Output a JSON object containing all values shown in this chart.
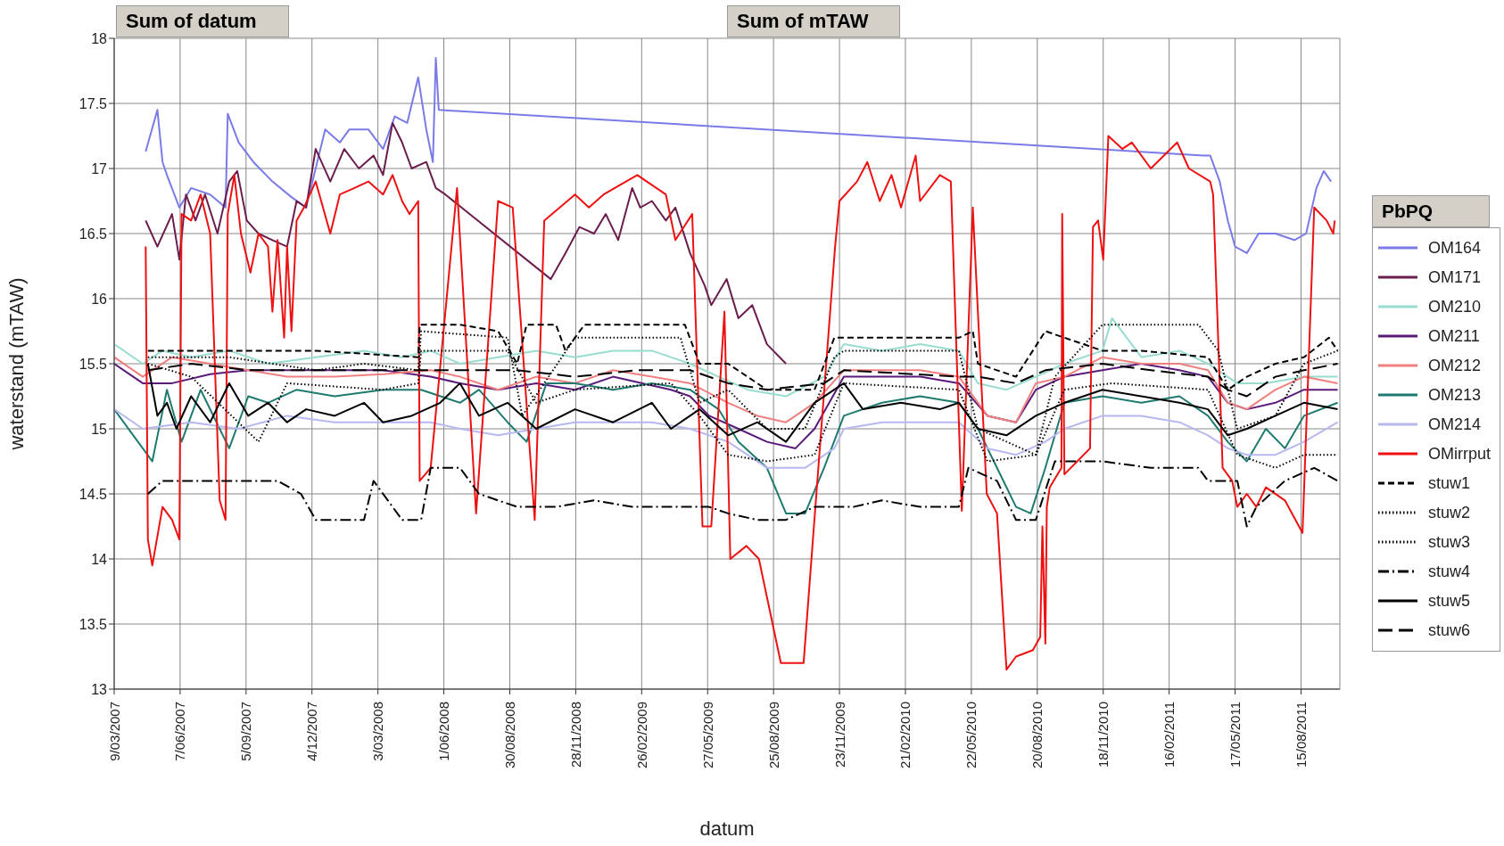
{
  "chart_data": {
    "type": "line",
    "xlabel": "datum",
    "ylabel": "waterstand (mTAW)",
    "legend_title": "PbPQ",
    "annotations": [
      "Sum of datum",
      "Sum of mTAW"
    ],
    "xlim": [
      "2007-03-09",
      "2011-10-07"
    ],
    "ylim": [
      13,
      18
    ],
    "xticks": [
      {
        "value": "2007-03-09",
        "label": "9/03/2007"
      },
      {
        "value": "2007-06-07",
        "label": "7/06/2007"
      },
      {
        "value": "2007-09-05",
        "label": "5/09/2007"
      },
      {
        "value": "2007-12-04",
        "label": "4/12/2007"
      },
      {
        "value": "2008-03-03",
        "label": "3/03/2008"
      },
      {
        "value": "2008-06-01",
        "label": "1/06/2008"
      },
      {
        "value": "2008-08-30",
        "label": "30/08/2008"
      },
      {
        "value": "2008-11-28",
        "label": "28/11/2008"
      },
      {
        "value": "2009-02-26",
        "label": "26/02/2009"
      },
      {
        "value": "2009-05-27",
        "label": "27/05/2009"
      },
      {
        "value": "2009-08-25",
        "label": "25/08/2009"
      },
      {
        "value": "2009-11-23",
        "label": "23/11/2009"
      },
      {
        "value": "2010-02-21",
        "label": "21/02/2010"
      },
      {
        "value": "2010-05-22",
        "label": "22/05/2010"
      },
      {
        "value": "2010-08-20",
        "label": "20/08/2010"
      },
      {
        "value": "2010-11-18",
        "label": "18/11/2010"
      },
      {
        "value": "2011-02-16",
        "label": "16/02/2011"
      },
      {
        "value": "2011-05-17",
        "label": "17/05/2011"
      },
      {
        "value": "2011-08-15",
        "label": "15/08/2011"
      }
    ],
    "yticks": [
      13,
      13.5,
      14,
      14.5,
      15,
      15.5,
      16,
      16.5,
      17,
      17.5,
      18
    ],
    "grid": true,
    "legend": "right",
    "marker": "none",
    "series": [
      {
        "name": "OM164",
        "color": "#7b7be8",
        "line_style": "solid",
        "x": [
          "2007-04-21",
          "2007-05-07",
          "2007-05-14",
          "2007-05-20",
          "2007-06-06",
          "2007-06-22",
          "2007-07-18",
          "2007-08-08",
          "2007-08-11",
          "2007-08-26",
          "2007-09-15",
          "2007-10-11",
          "2007-11-06",
          "2007-11-26",
          "2007-12-09",
          "2007-12-22",
          "2008-01-11",
          "2008-01-24",
          "2008-02-19",
          "2008-03-10",
          "2008-03-26",
          "2008-04-12",
          "2008-04-27",
          "2008-05-08",
          "2008-05-17",
          "2008-05-21",
          "2008-05-25",
          "2011-04-04",
          "2011-04-13",
          "2011-04-26",
          "2011-05-07",
          "2011-05-17",
          "2011-06-02",
          "2011-06-18",
          "2011-07-11",
          "2011-08-06",
          "2011-08-22",
          "2011-09-05",
          "2011-09-15",
          "2011-09-25"
        ],
        "values": [
          17.13,
          17.45,
          17.05,
          16.95,
          16.7,
          16.85,
          16.8,
          16.7,
          17.42,
          17.2,
          17.05,
          16.9,
          16.78,
          16.7,
          17.0,
          17.3,
          17.2,
          17.3,
          17.3,
          17.15,
          17.4,
          17.35,
          17.7,
          17.3,
          17.05,
          17.85,
          17.45,
          17.1,
          17.1,
          16.9,
          16.6,
          16.4,
          16.35,
          16.5,
          16.5,
          16.45,
          16.5,
          16.85,
          16.98,
          16.9
        ]
      },
      {
        "name": "OM171",
        "color": "#6b1e4e",
        "line_style": "solid",
        "x": [
          "2007-04-21",
          "2007-05-07",
          "2007-05-27",
          "2007-06-06",
          "2007-06-15",
          "2007-06-28",
          "2007-07-11",
          "2007-07-28",
          "2007-08-13",
          "2007-08-24",
          "2007-09-06",
          "2007-09-22",
          "2007-10-11",
          "2007-10-31",
          "2007-11-13",
          "2007-11-26",
          "2007-12-09",
          "2007-12-29",
          "2008-01-17",
          "2008-02-06",
          "2008-02-26",
          "2008-03-10",
          "2008-03-23",
          "2008-04-05",
          "2008-04-18",
          "2008-05-08",
          "2008-05-21",
          "2008-06-03",
          "2008-10-25",
          "2008-11-14",
          "2008-12-03",
          "2008-12-23",
          "2009-01-08",
          "2009-01-25",
          "2009-02-13",
          "2009-02-24",
          "2009-03-12",
          "2009-03-31",
          "2009-04-13",
          "2009-05-03",
          "2009-05-23",
          "2009-06-01",
          "2009-06-22",
          "2009-07-08",
          "2009-07-27",
          "2009-08-16",
          "2009-09-11"
        ],
        "values": [
          16.6,
          16.4,
          16.65,
          16.3,
          16.8,
          16.6,
          16.8,
          16.5,
          16.9,
          16.98,
          16.6,
          16.5,
          16.45,
          16.4,
          16.75,
          16.7,
          17.15,
          16.9,
          17.15,
          17.0,
          17.1,
          16.95,
          17.35,
          17.2,
          17.0,
          17.05,
          16.85,
          16.8,
          16.15,
          16.35,
          16.55,
          16.5,
          16.65,
          16.45,
          16.85,
          16.7,
          16.75,
          16.6,
          16.7,
          16.35,
          16.1,
          15.95,
          16.15,
          15.85,
          15.95,
          15.65,
          15.5
        ]
      },
      {
        "name": "OM210",
        "color": "#99dcd0",
        "line_style": "solid",
        "x": [
          "2007-03-09",
          "2007-04-17",
          "2007-05-14",
          "2007-06-22",
          "2007-08-13",
          "2007-10-05",
          "2007-12-09",
          "2008-02-13",
          "2008-04-05",
          "2008-05-14",
          "2008-06-23",
          "2008-08-14",
          "2008-10-05",
          "2008-11-27",
          "2009-01-18",
          "2009-03-12",
          "2009-05-03",
          "2009-06-11",
          "2009-07-21",
          "2009-09-11",
          "2009-11-02",
          "2009-11-29",
          "2010-01-20",
          "2010-03-13",
          "2010-05-05",
          "2010-05-31",
          "2010-07-09",
          "2010-08-18",
          "2010-09-26",
          "2010-11-17",
          "2010-11-30",
          "2011-01-09",
          "2011-03-02",
          "2011-04-10",
          "2011-05-20",
          "2011-06-28",
          "2011-08-19",
          "2011-10-04"
        ],
        "values": [
          15.65,
          15.5,
          15.6,
          15.55,
          15.6,
          15.5,
          15.55,
          15.6,
          15.55,
          15.6,
          15.5,
          15.55,
          15.6,
          15.55,
          15.6,
          15.6,
          15.5,
          15.4,
          15.3,
          15.25,
          15.4,
          15.65,
          15.6,
          15.65,
          15.6,
          15.35,
          15.3,
          15.4,
          15.5,
          15.6,
          15.85,
          15.55,
          15.6,
          15.5,
          15.35,
          15.35,
          15.4,
          15.4
        ]
      },
      {
        "name": "OM211",
        "color": "#5a1a7a",
        "line_style": "solid",
        "x": [
          "2007-03-09",
          "2007-04-17",
          "2007-05-27",
          "2007-07-18",
          "2007-09-08",
          "2007-10-31",
          "2008-01-04",
          "2008-03-10",
          "2008-05-14",
          "2008-06-23",
          "2008-08-14",
          "2008-10-05",
          "2008-11-27",
          "2009-01-18",
          "2009-02-27",
          "2009-04-07",
          "2009-05-03",
          "2009-05-29",
          "2009-07-08",
          "2009-08-16",
          "2009-09-24",
          "2009-10-20",
          "2009-11-29",
          "2010-01-20",
          "2010-03-13",
          "2010-05-05",
          "2010-06-13",
          "2010-07-22",
          "2010-08-18",
          "2010-09-26",
          "2010-11-17",
          "2011-01-09",
          "2011-03-02",
          "2011-04-10",
          "2011-05-07",
          "2011-06-02",
          "2011-07-11",
          "2011-08-19",
          "2011-10-04"
        ],
        "values": [
          15.5,
          15.35,
          15.35,
          15.42,
          15.45,
          15.45,
          15.45,
          15.45,
          15.4,
          15.35,
          15.3,
          15.35,
          15.3,
          15.4,
          15.35,
          15.3,
          15.25,
          15.1,
          15.0,
          14.9,
          14.85,
          15.0,
          15.4,
          15.4,
          15.4,
          15.35,
          15.1,
          15.05,
          15.3,
          15.4,
          15.45,
          15.5,
          15.45,
          15.4,
          15.2,
          15.15,
          15.2,
          15.3,
          15.3
        ]
      },
      {
        "name": "OM212",
        "color": "#f08080",
        "line_style": "solid",
        "x": [
          "2007-03-09",
          "2007-04-17",
          "2007-05-27",
          "2007-07-18",
          "2007-09-08",
          "2007-10-31",
          "2008-01-04",
          "2008-03-10",
          "2008-05-14",
          "2008-06-23",
          "2008-08-14",
          "2008-10-05",
          "2008-11-27",
          "2009-01-18",
          "2009-03-12",
          "2009-05-03",
          "2009-06-24",
          "2009-08-03",
          "2009-09-11",
          "2009-10-20",
          "2009-11-29",
          "2010-01-20",
          "2010-03-13",
          "2010-05-05",
          "2010-06-13",
          "2010-07-22",
          "2010-08-18",
          "2010-09-26",
          "2010-11-17",
          "2011-01-09",
          "2011-03-02",
          "2011-04-10",
          "2011-05-07",
          "2011-06-02",
          "2011-07-11",
          "2011-08-19",
          "2011-10-04"
        ],
        "values": [
          15.55,
          15.4,
          15.55,
          15.5,
          15.45,
          15.4,
          15.4,
          15.42,
          15.45,
          15.4,
          15.3,
          15.4,
          15.35,
          15.45,
          15.4,
          15.35,
          15.2,
          15.1,
          15.05,
          15.2,
          15.45,
          15.45,
          15.45,
          15.4,
          15.1,
          15.05,
          15.35,
          15.4,
          15.55,
          15.5,
          15.5,
          15.45,
          15.2,
          15.15,
          15.3,
          15.4,
          15.35
        ]
      },
      {
        "name": "OM213",
        "color": "#1f7a70",
        "line_style": "solid",
        "x": [
          "2007-03-09",
          "2007-04-04",
          "2007-04-30",
          "2007-05-20",
          "2007-06-09",
          "2007-07-05",
          "2007-08-13",
          "2007-09-08",
          "2007-10-05",
          "2007-11-13",
          "2008-01-04",
          "2008-03-10",
          "2008-05-01",
          "2008-06-23",
          "2008-07-19",
          "2008-08-27",
          "2008-09-22",
          "2008-10-19",
          "2008-11-27",
          "2009-01-18",
          "2009-03-12",
          "2009-05-03",
          "2009-06-11",
          "2009-07-08",
          "2009-08-16",
          "2009-09-11",
          "2009-10-07",
          "2009-11-02",
          "2009-11-29",
          "2010-01-20",
          "2010-03-13",
          "2010-05-05",
          "2010-05-31",
          "2010-06-26",
          "2010-07-22",
          "2010-08-11",
          "2010-08-31",
          "2010-09-26",
          "2010-11-17",
          "2011-01-09",
          "2011-03-02",
          "2011-04-10",
          "2011-05-07",
          "2011-06-02",
          "2011-06-28",
          "2011-07-24",
          "2011-08-19",
          "2011-10-04"
        ],
        "values": [
          15.15,
          14.95,
          14.75,
          15.3,
          14.9,
          15.3,
          14.85,
          15.25,
          15.2,
          15.3,
          15.25,
          15.3,
          15.3,
          15.2,
          15.3,
          15.05,
          14.9,
          15.35,
          15.35,
          15.3,
          15.35,
          15.3,
          15.15,
          14.9,
          14.7,
          14.35,
          14.35,
          14.7,
          15.1,
          15.2,
          15.25,
          15.2,
          15.0,
          14.7,
          14.4,
          14.35,
          14.7,
          15.2,
          15.25,
          15.2,
          15.25,
          15.1,
          14.9,
          14.75,
          15.0,
          14.85,
          15.1,
          15.2
        ]
      },
      {
        "name": "OM214",
        "color": "#b8b8f0",
        "line_style": "solid",
        "x": [
          "2007-03-09",
          "2007-04-17",
          "2007-06-22",
          "2007-08-26",
          "2007-10-31",
          "2008-01-04",
          "2008-03-10",
          "2008-05-14",
          "2008-06-23",
          "2008-08-14",
          "2008-10-05",
          "2008-11-27",
          "2009-01-18",
          "2009-03-12",
          "2009-05-03",
          "2009-06-24",
          "2009-08-16",
          "2009-10-07",
          "2009-11-16",
          "2009-11-29",
          "2010-01-20",
          "2010-03-13",
          "2010-05-05",
          "2010-06-13",
          "2010-07-22",
          "2010-08-31",
          "2010-09-26",
          "2010-11-17",
          "2011-01-09",
          "2011-03-02",
          "2011-04-10",
          "2011-05-07",
          "2011-06-02",
          "2011-07-11",
          "2011-08-19",
          "2011-10-04"
        ],
        "values": [
          15.15,
          15.0,
          15.05,
          15.0,
          15.1,
          15.05,
          15.05,
          15.05,
          15.0,
          14.95,
          15.0,
          15.05,
          15.05,
          15.05,
          15.0,
          14.9,
          14.7,
          14.7,
          14.85,
          15.0,
          15.05,
          15.05,
          15.05,
          14.85,
          14.8,
          14.9,
          15.0,
          15.1,
          15.1,
          15.05,
          14.95,
          14.85,
          14.8,
          14.8,
          14.9,
          15.05
        ]
      },
      {
        "name": "OMirrput",
        "color": "#ee1111",
        "line_style": "solid",
        "x": [
          "2007-04-21",
          "2007-04-24",
          "2007-04-30",
          "2007-05-14",
          "2007-05-27",
          "2007-06-06",
          "2007-06-09",
          "2007-06-22",
          "2007-07-05",
          "2007-07-18",
          "2007-07-31",
          "2007-08-08",
          "2007-08-11",
          "2007-08-20",
          "2007-08-29",
          "2007-09-11",
          "2007-09-22",
          "2007-10-05",
          "2007-10-11",
          "2007-10-18",
          "2007-10-27",
          "2007-10-31",
          "2007-11-06",
          "2007-11-13",
          "2007-11-23",
          "2007-12-09",
          "2007-12-29",
          "2008-01-11",
          "2008-01-31",
          "2008-02-19",
          "2008-03-10",
          "2008-03-23",
          "2008-04-05",
          "2008-04-15",
          "2008-04-27",
          "2008-04-29",
          "2008-05-14",
          "2008-06-19",
          "2008-07-15",
          "2008-08-14",
          "2008-09-03",
          "2008-10-03",
          "2008-10-16",
          "2008-11-27",
          "2008-12-16",
          "2009-01-05",
          "2009-02-20",
          "2009-03-31",
          "2009-04-13",
          "2009-05-06",
          "2009-05-20",
          "2009-06-01",
          "2009-06-19",
          "2009-06-27",
          "2009-07-19",
          "2009-08-05",
          "2009-09-04",
          "2009-10-05",
          "2009-11-17",
          "2009-11-23",
          "2009-12-17",
          "2009-12-31",
          "2010-01-17",
          "2010-02-02",
          "2010-02-15",
          "2010-03-07",
          "2010-03-13",
          "2010-04-09",
          "2010-04-24",
          "2010-05-09",
          "2010-05-24",
          "2010-06-12",
          "2010-06-26",
          "2010-07-09",
          "2010-07-22",
          "2010-08-14",
          "2010-08-24",
          "2010-08-27",
          "2010-08-31",
          "2010-09-02",
          "2010-09-06",
          "2010-09-22",
          "2010-09-23",
          "2010-09-26",
          "2010-10-31",
          "2010-11-04",
          "2010-11-11",
          "2010-11-18",
          "2010-11-25",
          "2010-12-14",
          "2010-12-27",
          "2011-01-22",
          "2011-02-27",
          "2011-03-15",
          "2011-04-13",
          "2011-04-17",
          "2011-04-30",
          "2011-05-13",
          "2011-05-20",
          "2011-06-02",
          "2011-06-15",
          "2011-06-28",
          "2011-07-24",
          "2011-08-17",
          "2011-09-02",
          "2011-09-19",
          "2011-09-28",
          "2011-09-30"
        ],
        "values": [
          16.4,
          14.15,
          13.95,
          14.4,
          14.3,
          14.15,
          16.65,
          16.6,
          16.8,
          16.5,
          14.45,
          14.3,
          16.65,
          16.95,
          16.5,
          16.2,
          16.5,
          16.4,
          15.9,
          16.45,
          15.7,
          16.4,
          15.75,
          16.6,
          16.7,
          16.9,
          16.5,
          16.8,
          16.85,
          16.9,
          16.8,
          16.95,
          16.75,
          16.65,
          16.75,
          14.6,
          14.7,
          16.85,
          14.35,
          16.75,
          16.7,
          14.3,
          16.6,
          16.8,
          16.7,
          16.8,
          16.95,
          16.8,
          16.45,
          16.65,
          14.25,
          14.25,
          15.9,
          14.0,
          14.1,
          14.0,
          13.2,
          13.2,
          16.4,
          16.75,
          16.9,
          17.05,
          16.75,
          16.95,
          16.7,
          17.1,
          16.75,
          16.95,
          16.9,
          14.37,
          16.7,
          14.5,
          14.35,
          13.15,
          13.25,
          13.3,
          13.4,
          14.25,
          13.35,
          14.4,
          14.55,
          14.7,
          16.65,
          14.65,
          14.85,
          16.55,
          16.6,
          16.3,
          17.25,
          17.15,
          17.2,
          17.0,
          17.2,
          17.0,
          16.9,
          16.8,
          14.7,
          14.6,
          14.4,
          14.5,
          14.4,
          14.55,
          14.45,
          14.2,
          16.7,
          16.6,
          16.5,
          16.6
        ]
      },
      {
        "name": "stuw1",
        "color": "#000000",
        "line_style": "dashed",
        "x": [
          "2007-04-24",
          "2007-08-13",
          "2007-12-09",
          "2008-04-27",
          "2008-04-29",
          "2008-06-23",
          "2008-08-14",
          "2008-09-09",
          "2008-09-22",
          "2008-11-01",
          "2008-11-14",
          "2008-12-10",
          "2009-02-13",
          "2009-04-26",
          "2009-05-16",
          "2009-06-24",
          "2009-08-16",
          "2009-10-20",
          "2009-11-16",
          "2009-11-29",
          "2010-05-05",
          "2010-05-24",
          "2010-05-31",
          "2010-07-22",
          "2010-08-31",
          "2010-09-26",
          "2010-11-17",
          "2011-01-09",
          "2011-04-10",
          "2011-05-07",
          "2011-06-02",
          "2011-07-11",
          "2011-08-19",
          "2011-09-22",
          "2011-10-04"
        ],
        "values": [
          15.6,
          15.6,
          15.6,
          15.55,
          15.8,
          15.8,
          15.75,
          15.5,
          15.8,
          15.8,
          15.6,
          15.8,
          15.8,
          15.8,
          15.5,
          15.5,
          15.3,
          15.3,
          15.7,
          15.7,
          15.7,
          15.75,
          15.5,
          15.4,
          15.75,
          15.7,
          15.6,
          15.6,
          15.55,
          15.3,
          15.4,
          15.5,
          15.55,
          15.7,
          15.6
        ]
      },
      {
        "name": "stuw2",
        "color": "#000000",
        "line_style": "dotted",
        "x": [
          "2007-04-24",
          "2007-08-13",
          "2007-12-09",
          "2008-02-13",
          "2008-04-27",
          "2008-05-01",
          "2008-08-27",
          "2008-09-16",
          "2008-11-27",
          "2009-04-20",
          "2009-05-16",
          "2009-06-24",
          "2009-08-16",
          "2009-10-07",
          "2009-11-16",
          "2009-11-29",
          "2010-05-05",
          "2010-05-31",
          "2010-08-18",
          "2010-09-13",
          "2010-11-17",
          "2011-03-28",
          "2011-04-24",
          "2011-05-20",
          "2011-07-11",
          "2011-08-19",
          "2011-10-04"
        ],
        "values": [
          15.55,
          15.55,
          15.45,
          15.5,
          15.45,
          15.75,
          15.7,
          15.1,
          15.7,
          15.7,
          15.2,
          15.3,
          15.0,
          15.0,
          15.55,
          15.6,
          15.6,
          15.0,
          14.8,
          15.4,
          15.8,
          15.8,
          15.6,
          15.0,
          15.1,
          15.5,
          15.6
        ]
      },
      {
        "name": "stuw3",
        "color": "#000000",
        "line_style": "dotted",
        "x": [
          "2007-04-24",
          "2007-06-22",
          "2007-09-22",
          "2007-10-31",
          "2008-03-10",
          "2008-04-27",
          "2008-05-01",
          "2008-08-27",
          "2008-10-05",
          "2008-11-27",
          "2009-04-07",
          "2009-05-16",
          "2009-06-24",
          "2009-08-16",
          "2009-10-20",
          "2009-11-29",
          "2010-05-05",
          "2010-06-13",
          "2010-08-18",
          "2010-09-26",
          "2010-11-30",
          "2011-04-10",
          "2011-05-20",
          "2011-07-11",
          "2011-08-19",
          "2011-10-04"
        ],
        "values": [
          15.5,
          15.4,
          14.9,
          15.35,
          15.3,
          15.35,
          15.6,
          15.6,
          15.2,
          15.3,
          15.35,
          15.1,
          14.8,
          14.75,
          14.8,
          15.35,
          15.3,
          14.75,
          14.8,
          15.3,
          15.35,
          15.3,
          14.8,
          14.7,
          14.8,
          14.8
        ]
      },
      {
        "name": "stuw4",
        "color": "#000000",
        "line_style": "dashdot",
        "x": [
          "2007-04-24",
          "2007-05-14",
          "2007-06-22",
          "2007-08-13",
          "2007-10-18",
          "2007-11-19",
          "2007-12-09",
          "2008-02-13",
          "2008-02-26",
          "2008-04-05",
          "2008-05-01",
          "2008-05-14",
          "2008-06-23",
          "2008-07-19",
          "2008-09-09",
          "2008-11-01",
          "2008-12-23",
          "2009-02-13",
          "2009-04-07",
          "2009-05-29",
          "2009-06-24",
          "2009-08-03",
          "2009-09-11",
          "2009-10-20",
          "2009-12-12",
          "2010-01-20",
          "2010-03-13",
          "2010-05-05",
          "2010-05-18",
          "2010-06-26",
          "2010-07-22",
          "2010-08-18",
          "2010-09-13",
          "2010-11-17",
          "2011-01-22",
          "2011-03-28",
          "2011-04-10",
          "2011-05-20",
          "2011-06-02",
          "2011-06-15",
          "2011-07-24",
          "2011-09-02",
          "2011-10-04"
        ],
        "values": [
          14.5,
          14.6,
          14.6,
          14.6,
          14.6,
          14.5,
          14.3,
          14.3,
          14.6,
          14.3,
          14.3,
          14.7,
          14.7,
          14.5,
          14.4,
          14.4,
          14.45,
          14.4,
          14.4,
          14.4,
          14.35,
          14.3,
          14.3,
          14.4,
          14.4,
          14.45,
          14.4,
          14.4,
          14.7,
          14.6,
          14.3,
          14.3,
          14.75,
          14.75,
          14.7,
          14.7,
          14.6,
          14.6,
          14.25,
          14.4,
          14.6,
          14.7,
          14.6
        ]
      },
      {
        "name": "stuw5",
        "color": "#000000",
        "line_style": "solid",
        "x": [
          "2007-04-24",
          "2007-05-07",
          "2007-05-20",
          "2007-06-02",
          "2007-06-22",
          "2007-07-18",
          "2007-08-13",
          "2007-09-08",
          "2007-10-05",
          "2007-10-31",
          "2007-11-26",
          "2008-01-04",
          "2008-02-13",
          "2008-03-10",
          "2008-04-18",
          "2008-05-27",
          "2008-06-23",
          "2008-07-19",
          "2008-08-27",
          "2008-10-05",
          "2008-11-27",
          "2009-01-18",
          "2009-03-12",
          "2009-04-07",
          "2009-05-16",
          "2009-06-24",
          "2009-08-03",
          "2009-09-11",
          "2009-10-20",
          "2009-11-29",
          "2009-12-25",
          "2010-02-15",
          "2010-04-09",
          "2010-05-05",
          "2010-05-31",
          "2010-07-09",
          "2010-08-18",
          "2010-09-26",
          "2010-11-17",
          "2011-01-09",
          "2011-03-02",
          "2011-04-10",
          "2011-05-07",
          "2011-06-02",
          "2011-07-11",
          "2011-08-19",
          "2011-10-04"
        ],
        "values": [
          15.5,
          15.1,
          15.2,
          15.0,
          15.25,
          15.05,
          15.35,
          15.1,
          15.2,
          15.05,
          15.15,
          15.1,
          15.2,
          15.05,
          15.1,
          15.2,
          15.35,
          15.1,
          15.2,
          15.0,
          15.15,
          15.05,
          15.2,
          15.0,
          15.15,
          14.95,
          15.05,
          14.9,
          15.2,
          15.35,
          15.15,
          15.2,
          15.15,
          15.2,
          15.0,
          14.95,
          15.1,
          15.2,
          15.3,
          15.25,
          15.2,
          15.15,
          14.95,
          15.0,
          15.1,
          15.2,
          15.15
        ]
      },
      {
        "name": "stuw6",
        "color": "#000000",
        "line_style": "longdash",
        "x": [
          "2007-04-24",
          "2007-06-22",
          "2007-09-08",
          "2007-12-09",
          "2008-04-27",
          "2008-06-23",
          "2008-09-09",
          "2008-11-27",
          "2009-02-20",
          "2009-05-03",
          "2009-06-24",
          "2009-08-16",
          "2009-11-02",
          "2009-11-29",
          "2010-05-05",
          "2010-05-31",
          "2010-07-22",
          "2010-08-31",
          "2010-11-17",
          "2011-01-22",
          "2011-04-10",
          "2011-05-07",
          "2011-06-02",
          "2011-07-11",
          "2011-08-19",
          "2011-10-04"
        ],
        "values": [
          15.45,
          15.5,
          15.45,
          15.45,
          15.45,
          15.45,
          15.45,
          15.4,
          15.45,
          15.45,
          15.35,
          15.3,
          15.35,
          15.45,
          15.4,
          15.4,
          15.35,
          15.45,
          15.5,
          15.45,
          15.4,
          15.3,
          15.25,
          15.4,
          15.45,
          15.5
        ]
      }
    ]
  }
}
